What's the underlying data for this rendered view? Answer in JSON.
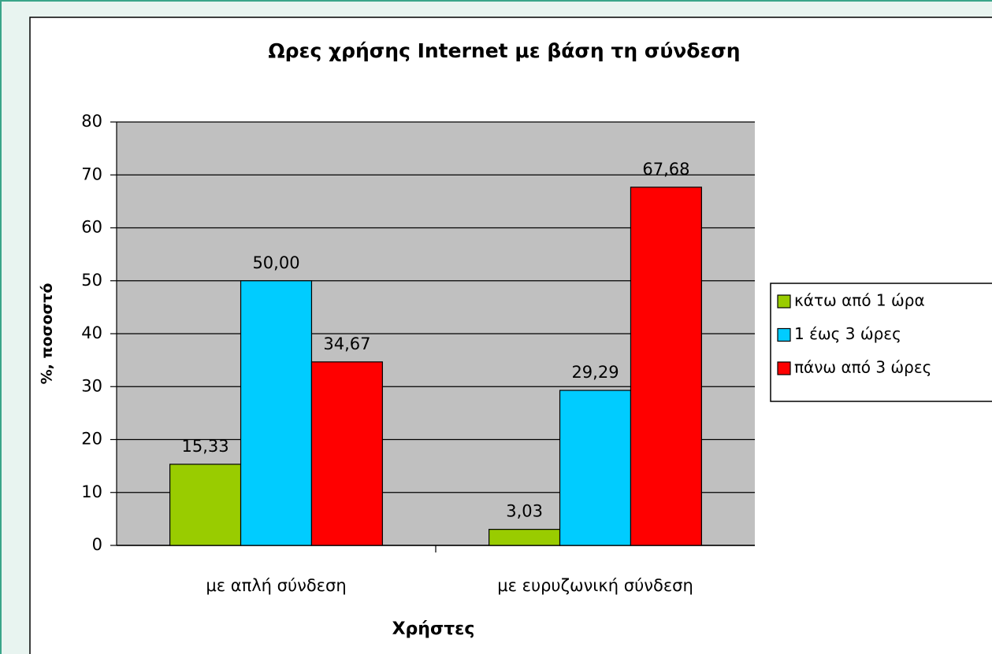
{
  "chart_data": {
    "type": "bar",
    "title": "Ωρες χρήσης Internet με βάση τη σύνδεση",
    "x_label": "Χρήστες",
    "y_label": "%, ποσοστό",
    "categories": [
      "με απλή σύνδεση",
      "με ευρυζωνική σύνδεση"
    ],
    "series": [
      {
        "name": "κάτω από 1 ώρα",
        "color": "#99cc00",
        "values": [
          15.33,
          3.03
        ],
        "value_labels": [
          "15,33",
          "3,03"
        ]
      },
      {
        "name": "1 έως 3 ώρες",
        "color": "#00ccff",
        "values": [
          50,
          29.29
        ],
        "value_labels": [
          "50,00",
          "29,29"
        ]
      },
      {
        "name": "πάνω από 3 ώρες",
        "color": "#ff0000",
        "values": [
          34.67,
          67.68
        ],
        "value_labels": [
          "34,67",
          "67,68"
        ]
      }
    ],
    "ylim": [
      0,
      80
    ],
    "yticks": [
      0,
      10,
      20,
      30,
      40,
      50,
      60,
      70,
      80
    ],
    "grid": true,
    "legend": "right"
  }
}
